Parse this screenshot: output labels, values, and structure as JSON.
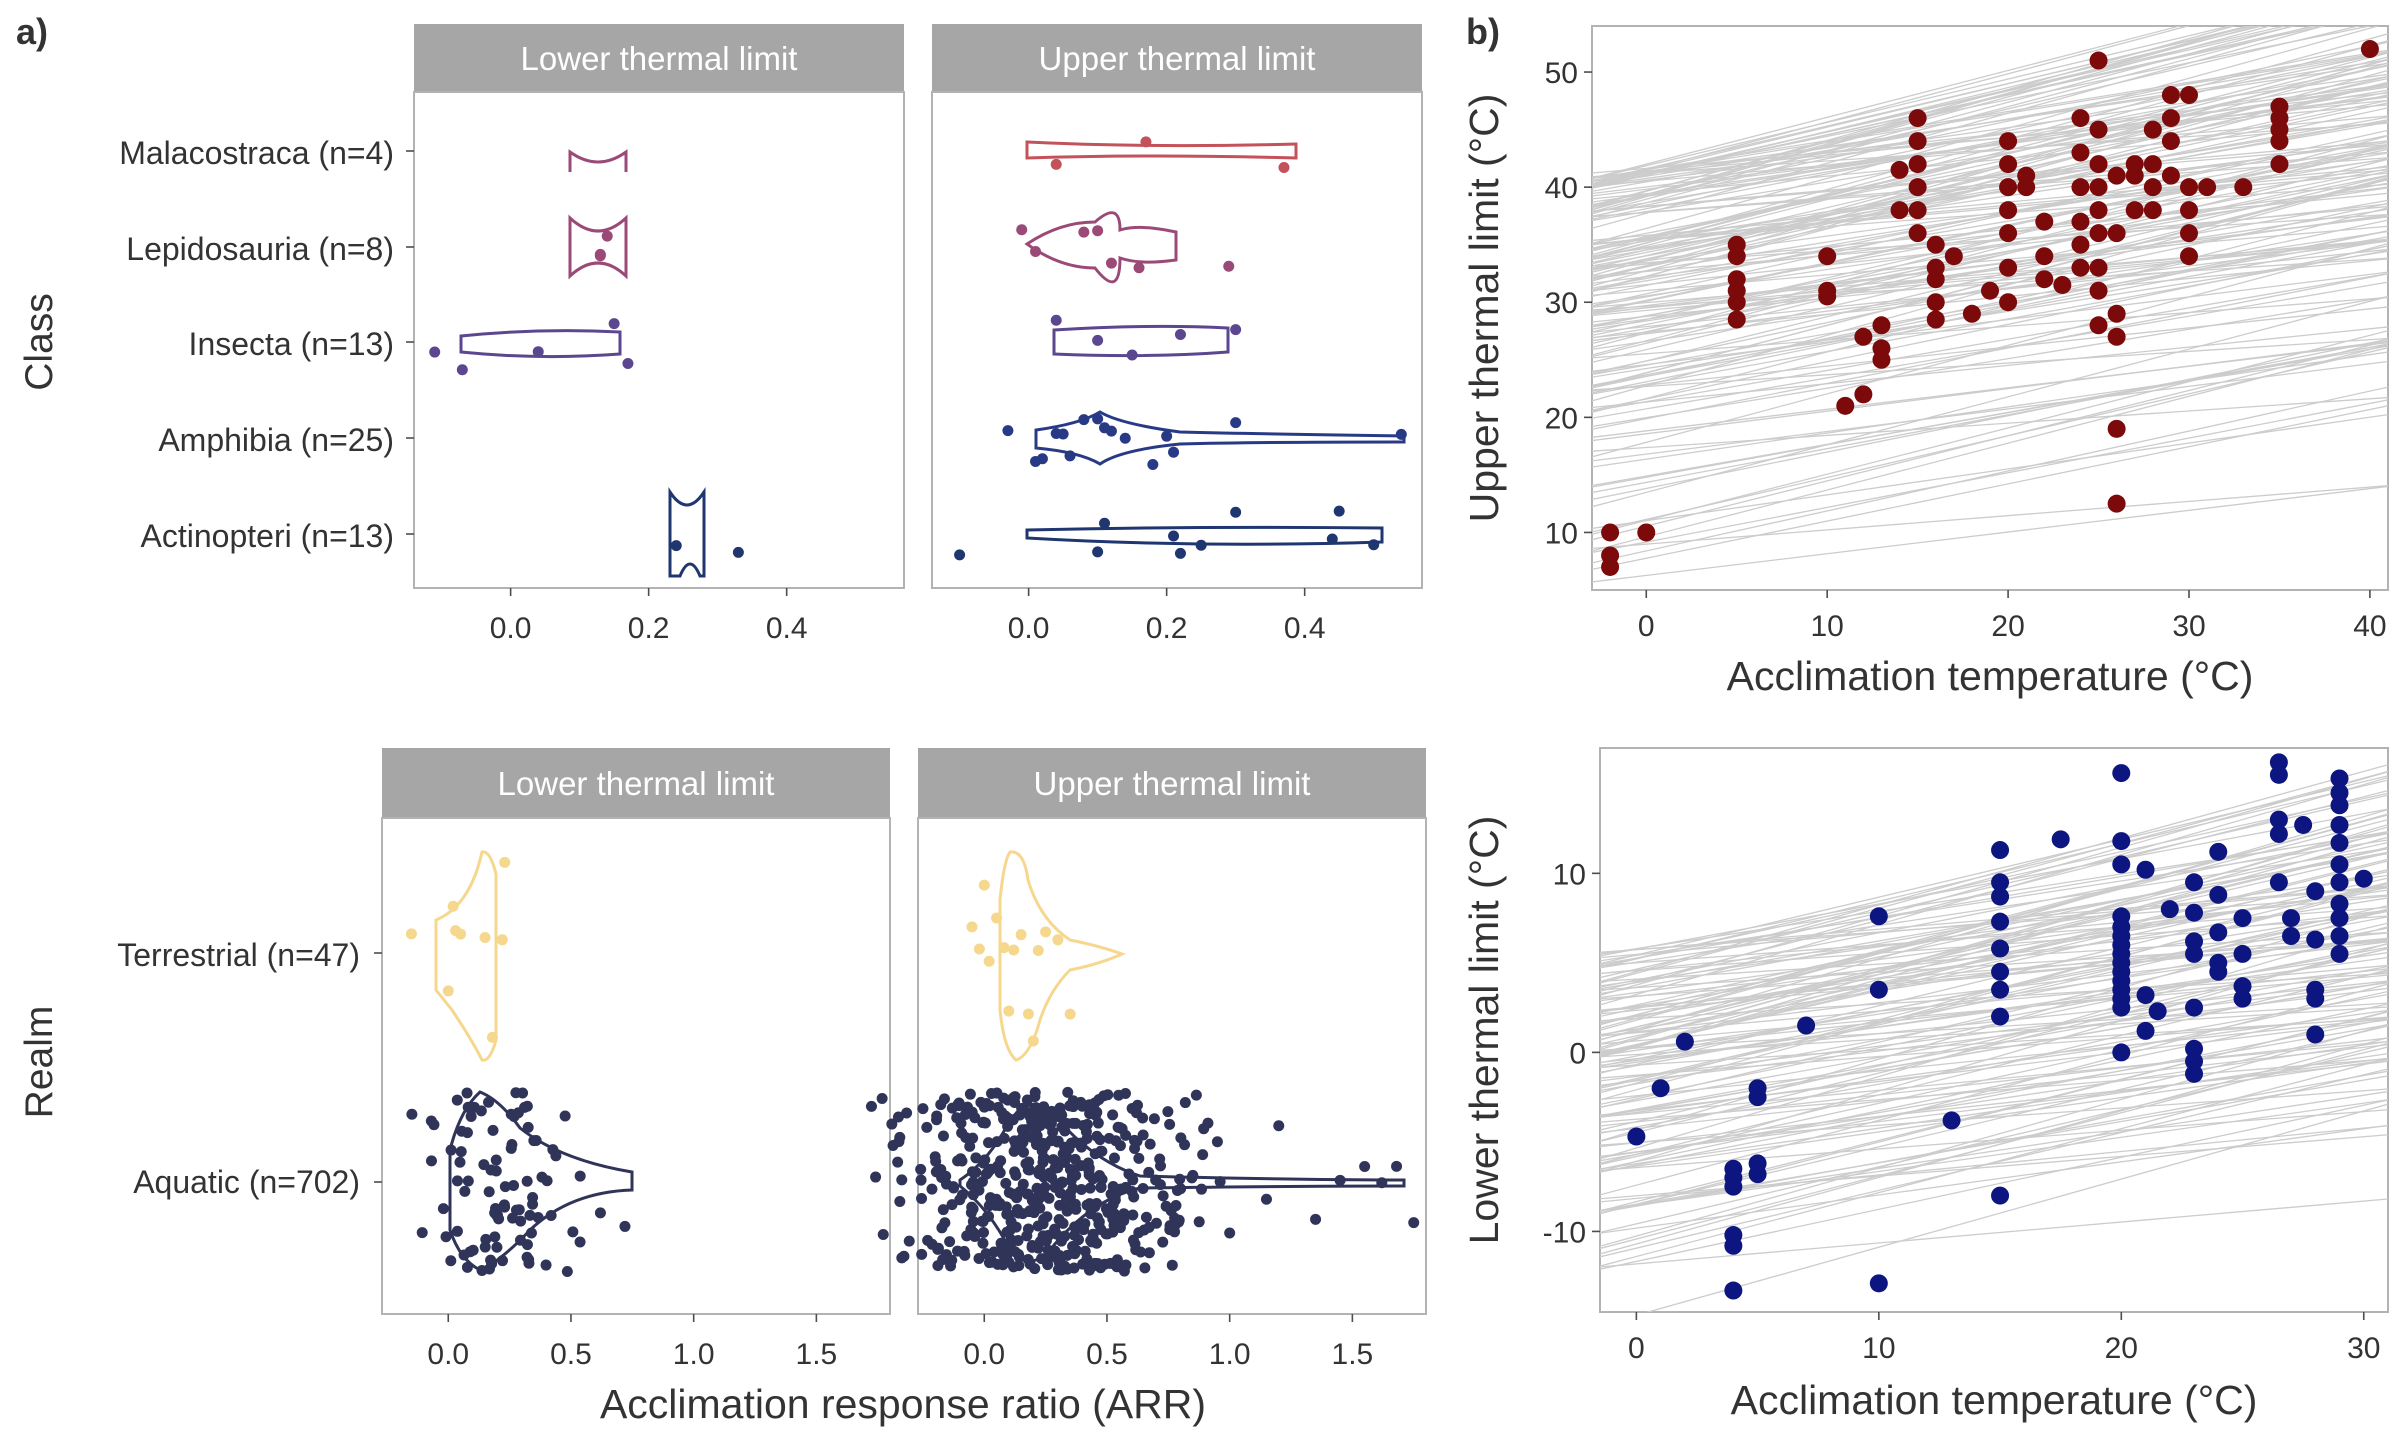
{
  "panel_labels": {
    "a": "a)",
    "b": "b)"
  },
  "colors": {
    "Malacostraca": "#c4525b",
    "Lepidosauria": "#9b4a78",
    "Insecta": "#5b4690",
    "Amphibia": "#283a85",
    "Actinopteri": "#1f3670",
    "Terrestrial": "#f5d78e",
    "Aquatic": "#2f3458",
    "upper_points": "#7c0a0a",
    "lower_points": "#0d1680",
    "regression_lines": "#cccccc",
    "strip": "#a6a6a6"
  },
  "chart_data": [
    {
      "id": "class",
      "type": "violin",
      "facets": [
        "Lower thermal limit",
        "Upper thermal limit"
      ],
      "ylabel": "Class",
      "categories": [
        "Malacostraca (n=4)",
        "Lepidosauria (n=8)",
        "Insecta (n=13)",
        "Amphibia (n=25)",
        "Actinopteri (n=13)"
      ],
      "xticks": [
        "0.0",
        "0.2",
        "0.4"
      ],
      "xlim": [
        -0.14,
        0.57
      ],
      "points": {
        "lower": {
          "Lepidosauria": [
            0.13,
            0.14,
            0.13
          ],
          "Insecta": [
            -0.07,
            -0.11,
            0.04,
            0.15,
            0.17
          ],
          "Actinopteri": [
            0.24,
            0.33
          ]
        },
        "upper": {
          "Malacostraca": [
            0.04,
            0.17,
            0.37
          ],
          "Lepidosauria": [
            -0.01,
            0.01,
            0.08,
            0.1,
            0.12,
            0.16,
            0.29
          ],
          "Insecta": [
            0.04,
            0.1,
            0.15,
            0.22,
            0.3
          ],
          "Amphibia": [
            -0.03,
            0.01,
            0.02,
            0.04,
            0.05,
            0.06,
            0.08,
            0.1,
            0.11,
            0.12,
            0.14,
            0.18,
            0.2,
            0.21,
            0.3,
            0.54
          ],
          "Actinopteri": [
            -0.1,
            0.1,
            0.11,
            0.21,
            0.22,
            0.25,
            0.3,
            0.44,
            0.45,
            0.5
          ]
        }
      }
    },
    {
      "id": "realm",
      "type": "violin",
      "facets": [
        "Lower thermal limit",
        "Upper thermal limit"
      ],
      "ylabel": "Realm",
      "xlabel": "Acclimation response ratio (ARR)",
      "categories": [
        "Terrestrial (n=47)",
        "Aquatic (n=702)"
      ],
      "xticks": [
        "0.0",
        "0.5",
        "1.0",
        "1.5"
      ],
      "xlim": [
        -0.27,
        1.8
      ],
      "points": {
        "lower": {
          "Terrestrial": [
            -0.15,
            0.0,
            0.02,
            0.03,
            0.05,
            0.15,
            0.18,
            0.22,
            0.23
          ],
          "Aquatic_outliers": [
            0.62,
            0.72
          ]
        },
        "upper": {
          "Terrestrial": [
            -0.05,
            -0.02,
            0.0,
            0.02,
            0.05,
            0.08,
            0.1,
            0.12,
            0.15,
            0.18,
            0.2,
            0.22,
            0.25,
            0.3,
            0.35
          ],
          "Aquatic_outliers": [
            0.8,
            0.85,
            0.95,
            1.0,
            1.15,
            1.2,
            1.35,
            1.45,
            1.55,
            1.62,
            1.68,
            1.75
          ]
        }
      }
    },
    {
      "id": "upper_scatter",
      "type": "scatter",
      "xlabel": "Acclimation temperature (°C)",
      "ylabel": "Upper thermal limit (°C)",
      "xticks": [
        "0",
        "10",
        "20",
        "30",
        "40"
      ],
      "yticks": [
        "10",
        "20",
        "30",
        "40",
        "50"
      ],
      "xlim": [
        -3,
        41
      ],
      "ylim": [
        5,
        54
      ],
      "points": [
        [
          -2,
          7
        ],
        [
          -2,
          8
        ],
        [
          -2,
          10
        ],
        [
          0,
          10
        ],
        [
          5,
          28.5
        ],
        [
          5,
          30
        ],
        [
          5,
          31
        ],
        [
          5,
          32
        ],
        [
          5,
          34
        ],
        [
          5,
          35
        ],
        [
          10,
          30.5
        ],
        [
          10,
          31
        ],
        [
          10,
          34
        ],
        [
          11,
          21
        ],
        [
          12,
          22
        ],
        [
          12,
          27
        ],
        [
          13,
          25
        ],
        [
          13,
          26
        ],
        [
          13,
          28
        ],
        [
          14,
          38
        ],
        [
          14,
          41.5
        ],
        [
          15,
          36
        ],
        [
          15,
          38
        ],
        [
          15,
          40
        ],
        [
          15,
          42
        ],
        [
          15,
          44
        ],
        [
          15,
          46
        ],
        [
          16,
          28.5
        ],
        [
          16,
          30
        ],
        [
          16,
          32
        ],
        [
          16,
          33
        ],
        [
          16,
          35
        ],
        [
          17,
          34
        ],
        [
          18,
          29
        ],
        [
          19,
          31
        ],
        [
          20,
          30
        ],
        [
          20,
          33
        ],
        [
          20,
          36
        ],
        [
          20,
          38
        ],
        [
          20,
          40
        ],
        [
          20,
          42
        ],
        [
          20,
          44
        ],
        [
          21,
          40
        ],
        [
          21,
          41
        ],
        [
          22,
          32
        ],
        [
          22,
          34
        ],
        [
          22,
          37
        ],
        [
          23,
          31.5
        ],
        [
          24,
          33
        ],
        [
          24,
          35
        ],
        [
          24,
          37
        ],
        [
          24,
          40
        ],
        [
          24,
          43
        ],
        [
          24,
          46
        ],
        [
          25,
          28
        ],
        [
          25,
          31
        ],
        [
          25,
          33
        ],
        [
          25,
          36
        ],
        [
          25,
          38
        ],
        [
          25,
          40
        ],
        [
          25,
          42
        ],
        [
          25,
          45
        ],
        [
          25,
          51
        ],
        [
          26,
          12.5
        ],
        [
          26,
          19
        ],
        [
          26,
          27
        ],
        [
          26,
          29
        ],
        [
          26,
          36
        ],
        [
          26,
          41
        ],
        [
          27,
          38
        ],
        [
          27,
          41
        ],
        [
          27,
          42
        ],
        [
          28,
          38
        ],
        [
          28,
          40
        ],
        [
          28,
          42
        ],
        [
          28,
          45
        ],
        [
          29,
          41
        ],
        [
          29,
          44
        ],
        [
          29,
          46
        ],
        [
          29,
          48
        ],
        [
          30,
          34
        ],
        [
          30,
          36
        ],
        [
          30,
          38
        ],
        [
          30,
          40
        ],
        [
          30,
          48
        ],
        [
          31,
          40
        ],
        [
          33,
          40
        ],
        [
          35,
          42
        ],
        [
          35,
          44
        ],
        [
          35,
          45
        ],
        [
          35,
          46
        ],
        [
          35,
          47
        ],
        [
          40,
          52
        ]
      ],
      "regression_lines": {
        "count": 160,
        "slope_range": [
          0.1,
          0.45
        ]
      }
    },
    {
      "id": "lower_scatter",
      "type": "scatter",
      "xlabel": "Acclimation temperature (°C)",
      "ylabel": "Lower thermal limit (°C)",
      "xticks": [
        "0",
        "10",
        "20",
        "30"
      ],
      "yticks": [
        "-10",
        "0",
        "10"
      ],
      "xlim": [
        -1.5,
        31
      ],
      "ylim": [
        -14.5,
        17
      ],
      "points": [
        [
          0,
          -4.7
        ],
        [
          1,
          -2
        ],
        [
          2,
          0.6
        ],
        [
          4,
          -6.5
        ],
        [
          4,
          -7
        ],
        [
          4,
          -7.5
        ],
        [
          4,
          -10.2
        ],
        [
          4,
          -10.8
        ],
        [
          4,
          -13.3
        ],
        [
          5,
          -2
        ],
        [
          5,
          -2.5
        ],
        [
          5,
          -6.2
        ],
        [
          5,
          -6.8
        ],
        [
          7,
          1.5
        ],
        [
          10,
          7.6
        ],
        [
          10,
          3.5
        ],
        [
          10,
          -12.9
        ],
        [
          13,
          -3.8
        ],
        [
          15,
          11.3
        ],
        [
          15,
          9.5
        ],
        [
          15,
          8.7
        ],
        [
          15,
          7.3
        ],
        [
          15,
          5.8
        ],
        [
          15,
          4.5
        ],
        [
          15,
          3.5
        ],
        [
          15,
          2
        ],
        [
          15,
          -8
        ],
        [
          17.5,
          11.9
        ],
        [
          20,
          15.6
        ],
        [
          20,
          11.8
        ],
        [
          20,
          10.5
        ],
        [
          20,
          7.6
        ],
        [
          20,
          7
        ],
        [
          20,
          6.5
        ],
        [
          20,
          6
        ],
        [
          20,
          5.5
        ],
        [
          20,
          5
        ],
        [
          20,
          4.5
        ],
        [
          20,
          4
        ],
        [
          20,
          3.5
        ],
        [
          20,
          3
        ],
        [
          20,
          2.5
        ],
        [
          20,
          0
        ],
        [
          21,
          10.2
        ],
        [
          21,
          3.2
        ],
        [
          21,
          1.2
        ],
        [
          21.5,
          2.3
        ],
        [
          22,
          8
        ],
        [
          23,
          9.5
        ],
        [
          23,
          7.8
        ],
        [
          23,
          6.2
        ],
        [
          23,
          5.5
        ],
        [
          23,
          2.5
        ],
        [
          23,
          0.2
        ],
        [
          23,
          -0.5
        ],
        [
          23,
          -1.2
        ],
        [
          24,
          11.2
        ],
        [
          24,
          8.8
        ],
        [
          24,
          6.7
        ],
        [
          24,
          5
        ],
        [
          24,
          4.5
        ],
        [
          25,
          7.5
        ],
        [
          25,
          5.5
        ],
        [
          25,
          3.7
        ],
        [
          25,
          3
        ],
        [
          26.5,
          16.2
        ],
        [
          26.5,
          15.5
        ],
        [
          26.5,
          13
        ],
        [
          26.5,
          12.2
        ],
        [
          26.5,
          9.5
        ],
        [
          27,
          7.5
        ],
        [
          27,
          6.5
        ],
        [
          27.5,
          12.7
        ],
        [
          28,
          9
        ],
        [
          28,
          6.3
        ],
        [
          28,
          3.5
        ],
        [
          28,
          3
        ],
        [
          28,
          1
        ],
        [
          29,
          15.3
        ],
        [
          29,
          14.5
        ],
        [
          29,
          13.8
        ],
        [
          29,
          12.7
        ],
        [
          29,
          11.7
        ],
        [
          29,
          10.5
        ],
        [
          29,
          9.5
        ],
        [
          29,
          8.3
        ],
        [
          29,
          7.5
        ],
        [
          29,
          6.5
        ],
        [
          29,
          5.5
        ],
        [
          30,
          9.7
        ]
      ],
      "regression_lines": {
        "count": 130,
        "slope_range": [
          0.08,
          0.4
        ]
      }
    }
  ]
}
